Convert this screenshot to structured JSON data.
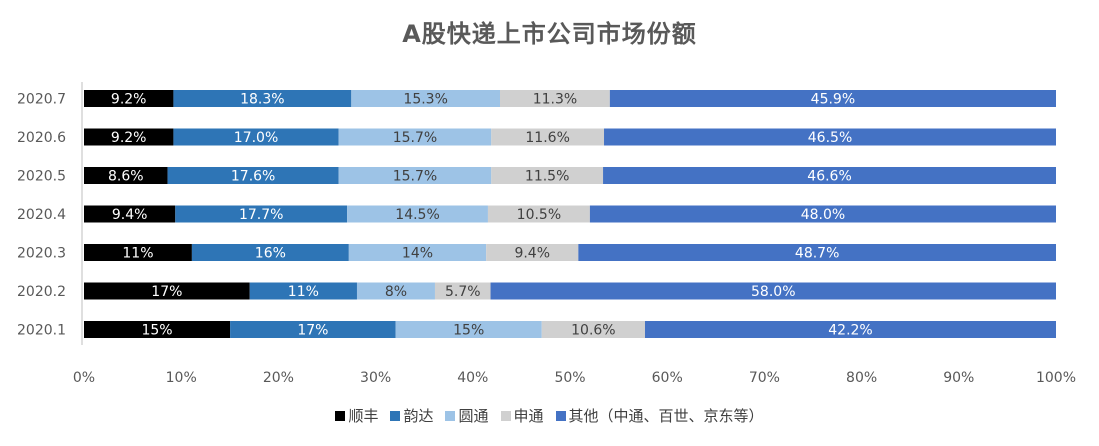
{
  "chart_data": {
    "type": "bar",
    "orientation": "horizontal",
    "stacked": "percent",
    "title": "A股快递上市公司市场份额",
    "categories": [
      "2020.7",
      "2020.6",
      "2020.5",
      "2020.4",
      "2020.3",
      "2020.2",
      "2020.1"
    ],
    "series": [
      {
        "name": "顺丰",
        "color": "#000000",
        "label_color": "#ffffff",
        "values": [
          9.2,
          9.2,
          8.6,
          9.4,
          11,
          17,
          15
        ],
        "labels": [
          "9.2%",
          "9.2%",
          "8.6%",
          "9.4%",
          "11%",
          "17%",
          "15%"
        ]
      },
      {
        "name": "韵达",
        "color": "#2e75b6",
        "label_color": "#ffffff",
        "values": [
          18.3,
          17.0,
          17.6,
          17.7,
          16,
          11,
          17
        ],
        "labels": [
          "18.3%",
          "17.0%",
          "17.6%",
          "17.7%",
          "16%",
          "11%",
          "17%"
        ]
      },
      {
        "name": "圆通",
        "color": "#9dc3e6",
        "label_color": "#404040",
        "values": [
          15.3,
          15.7,
          15.7,
          14.5,
          14,
          8,
          15
        ],
        "labels": [
          "15.3%",
          "15.7%",
          "15.7%",
          "14.5%",
          "14%",
          "8%",
          "15%"
        ]
      },
      {
        "name": "申通",
        "color": "#d0d0d0",
        "label_color": "#404040",
        "values": [
          11.3,
          11.6,
          11.5,
          10.5,
          9.4,
          5.7,
          10.6
        ],
        "labels": [
          "11.3%",
          "11.6%",
          "11.5%",
          "10.5%",
          "9.4%",
          "5.7%",
          "10.6%"
        ]
      },
      {
        "name": "其他（中通、百世、京东等）",
        "color": "#4472c4",
        "label_color": "#ffffff",
        "values": [
          45.9,
          46.5,
          46.6,
          48.0,
          48.7,
          58.0,
          42.2
        ],
        "labels": [
          "45.9%",
          "46.5%",
          "46.6%",
          "48.0%",
          "48.7%",
          "58.0%",
          "42.2%"
        ]
      }
    ],
    "xlim": [
      0,
      100
    ],
    "xticks": [
      "0%",
      "10%",
      "20%",
      "30%",
      "40%",
      "50%",
      "60%",
      "70%",
      "80%",
      "90%",
      "100%"
    ],
    "grid": false,
    "legend_position": "bottom"
  }
}
